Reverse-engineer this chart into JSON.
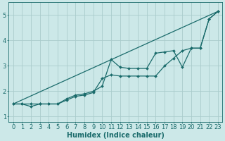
{
  "xlabel": "Humidex (Indice chaleur)",
  "bg_color": "#cce8e8",
  "grid_color": "#aacccc",
  "line_color": "#1a6b6b",
  "x_values": [
    0,
    1,
    2,
    3,
    4,
    5,
    6,
    7,
    8,
    9,
    10,
    11,
    12,
    13,
    14,
    15,
    16,
    17,
    18,
    19,
    20,
    21,
    22,
    23
  ],
  "line1_y": [
    1.5,
    1.5,
    1.4,
    1.5,
    1.5,
    1.5,
    1.7,
    1.85,
    1.9,
    2.0,
    2.2,
    3.25,
    2.95,
    2.9,
    2.9,
    2.9,
    3.5,
    3.55,
    3.6,
    2.95,
    3.7,
    3.7,
    4.85,
    5.15
  ],
  "line2_y": [
    1.5,
    1.5,
    1.5,
    1.5,
    1.5,
    1.5,
    1.65,
    1.8,
    1.85,
    1.95,
    2.5,
    2.65,
    2.6,
    2.6,
    2.6,
    2.6,
    2.6,
    3.0,
    3.3,
    3.6,
    3.7,
    3.7,
    4.85,
    5.15
  ],
  "line3_x": [
    0,
    23
  ],
  "line3_y": [
    1.5,
    5.15
  ],
  "ylim": [
    0.8,
    5.5
  ],
  "xlim": [
    -0.5,
    23.5
  ],
  "xticks": [
    0,
    1,
    2,
    3,
    4,
    5,
    6,
    7,
    8,
    9,
    10,
    11,
    12,
    13,
    14,
    15,
    16,
    17,
    18,
    19,
    20,
    21,
    22,
    23
  ],
  "yticks": [
    1,
    2,
    3,
    4,
    5
  ],
  "marker": "D",
  "markersize": 2.0,
  "linewidth": 0.9,
  "xlabel_fontsize": 7,
  "tick_fontsize": 6.0
}
